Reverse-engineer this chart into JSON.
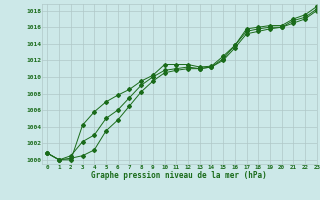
{
  "bg_color": "#cce8e8",
  "grid_color": "#b0c8c8",
  "line_color": "#1a6b1a",
  "x_label": "Graphe pression niveau de la mer (hPa)",
  "xlim": [
    -0.5,
    23
  ],
  "ylim": [
    999.5,
    1018.8
  ],
  "yticks": [
    1000,
    1002,
    1004,
    1006,
    1008,
    1010,
    1012,
    1014,
    1016,
    1018
  ],
  "xticks": [
    0,
    1,
    2,
    3,
    4,
    5,
    6,
    7,
    8,
    9,
    10,
    11,
    12,
    13,
    14,
    15,
    16,
    17,
    18,
    19,
    20,
    21,
    22,
    23
  ],
  "series1": [
    1000.8,
    1000.0,
    1000.0,
    1004.2,
    1005.8,
    1007.0,
    1007.8,
    1008.5,
    1009.5,
    1010.2,
    1011.5,
    1011.5,
    1011.5,
    1011.2,
    1011.3,
    1012.5,
    1013.8,
    1015.8,
    1016.0,
    1016.2,
    1016.2,
    1017.0,
    1017.5,
    1018.5
  ],
  "series2": [
    1000.8,
    1000.0,
    1000.5,
    1002.2,
    1003.0,
    1005.0,
    1006.0,
    1007.5,
    1009.0,
    1010.0,
    1010.8,
    1011.0,
    1011.2,
    1011.0,
    1011.2,
    1012.2,
    1013.8,
    1015.5,
    1015.8,
    1016.0,
    1016.0,
    1016.8,
    1017.2,
    1018.2
  ],
  "series3": [
    1000.8,
    1000.0,
    1000.2,
    1000.5,
    1001.2,
    1003.5,
    1004.8,
    1006.5,
    1008.2,
    1009.5,
    1010.5,
    1010.8,
    1011.0,
    1011.0,
    1011.2,
    1012.0,
    1013.5,
    1015.2,
    1015.5,
    1015.8,
    1016.0,
    1016.5,
    1017.0,
    1018.0
  ]
}
